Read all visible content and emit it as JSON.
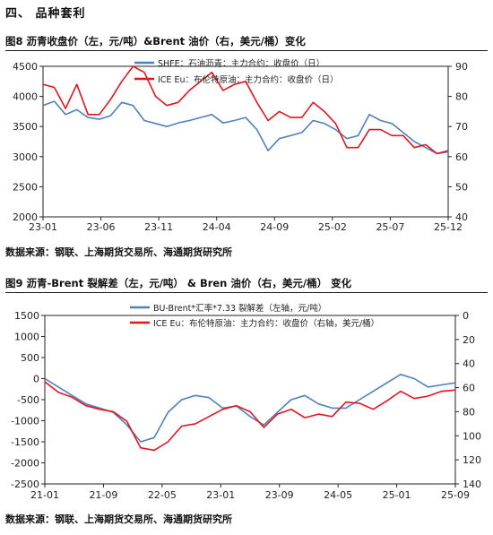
{
  "section": {
    "title": "四、  品种套利"
  },
  "figures": [
    {
      "header": "图8   沥青收盘价（左，元/吨）&Brent 油价（右，美元/桶）变化",
      "source": "数据来源：钢联、上海期货交易所、海通期货研究所"
    },
    {
      "header": "图9   沥青-Brent 裂解差（左，元/吨） & Bren 油价（右，美元/桶） 变化",
      "source": "数据来源：钢联、上海期货交易所、海通期货研究所"
    }
  ],
  "chart_data": [
    {
      "type": "line",
      "title": "",
      "x_tick_labels": [
        "23-01",
        "23-06",
        "23-11",
        "24-04",
        "24-09",
        "25-02",
        "25-07",
        "25-12"
      ],
      "x_range": [
        "2023-01",
        "2026-01"
      ],
      "y_left": {
        "range": [
          2000,
          4500
        ],
        "ticks": [
          2000,
          2500,
          3000,
          3500,
          4000,
          4500
        ]
      },
      "y_right": {
        "range": [
          40,
          90
        ],
        "ticks": [
          40,
          50,
          60,
          70,
          80,
          90
        ]
      },
      "grid": false,
      "legend_position": "top-center",
      "series": [
        {
          "name": "SHFE：石油沥青：主力合约：收盘价（日）",
          "axis": "left",
          "color": "#4f81bd",
          "x": [
            "2023-01",
            "2023-02",
            "2023-03",
            "2023-04",
            "2023-05",
            "2023-06",
            "2023-07",
            "2023-08",
            "2023-09",
            "2023-10",
            "2023-11",
            "2023-12",
            "2024-01",
            "2024-02",
            "2024-03",
            "2024-04",
            "2024-05",
            "2024-06",
            "2024-07",
            "2024-08",
            "2024-09",
            "2024-10",
            "2024-11",
            "2024-12",
            "2025-01",
            "2025-02",
            "2025-03",
            "2025-04",
            "2025-05",
            "2025-06",
            "2025-07",
            "2025-08",
            "2025-09",
            "2025-10",
            "2025-11",
            "2025-12",
            "2026-01"
          ],
          "values": [
            3850,
            3920,
            3700,
            3780,
            3650,
            3620,
            3680,
            3900,
            3850,
            3600,
            3550,
            3500,
            3560,
            3600,
            3650,
            3700,
            3560,
            3600,
            3650,
            3450,
            3100,
            3300,
            3350,
            3400,
            3600,
            3550,
            3450,
            3300,
            3350,
            3700,
            3600,
            3550,
            3400,
            3250,
            3150,
            3050,
            3080
          ]
        },
        {
          "name": "ICE Eu：布伦特原油：主力合约：收盘价（日）",
          "axis": "right",
          "color": "#e8141c",
          "x": [
            "2023-01",
            "2023-02",
            "2023-03",
            "2023-04",
            "2023-05",
            "2023-06",
            "2023-07",
            "2023-08",
            "2023-09",
            "2023-10",
            "2023-11",
            "2023-12",
            "2024-01",
            "2024-02",
            "2024-03",
            "2024-04",
            "2024-05",
            "2024-06",
            "2024-07",
            "2024-08",
            "2024-09",
            "2024-10",
            "2024-11",
            "2024-12",
            "2025-01",
            "2025-02",
            "2025-03",
            "2025-04",
            "2025-05",
            "2025-06",
            "2025-07",
            "2025-08",
            "2025-09",
            "2025-10",
            "2025-11",
            "2025-12",
            "2026-01"
          ],
          "values": [
            84,
            83,
            76,
            84,
            74,
            74,
            79,
            85,
            93,
            88,
            80,
            77,
            78,
            82,
            85,
            88,
            82,
            84,
            85,
            78,
            72,
            75,
            73,
            73,
            78,
            75,
            71,
            63,
            63,
            69,
            69,
            67,
            67,
            63,
            64,
            61,
            62
          ]
        }
      ]
    },
    {
      "type": "line",
      "title": "",
      "x_tick_labels": [
        "21-01",
        "21-09",
        "22-05",
        "23-01",
        "23-09",
        "24-05",
        "25-01",
        "25-09"
      ],
      "x_range": [
        "2021-01",
        "2026-01"
      ],
      "y_left": {
        "range": [
          -2500,
          1500
        ],
        "ticks": [
          -2500,
          -2000,
          -1500,
          -1000,
          -500,
          0,
          500,
          1000,
          1500
        ]
      },
      "y_right": {
        "range": [
          140,
          0
        ],
        "inverted": true,
        "ticks": [
          0,
          20,
          40,
          60,
          80,
          100,
          120,
          140
        ]
      },
      "grid": false,
      "legend_position": "top-center",
      "series": [
        {
          "name": "BU-Brent*汇率*7.33 裂解差（左轴，元/吨）",
          "axis": "left",
          "color": "#4f81bd",
          "x": [
            "2021-01",
            "2021-03",
            "2021-05",
            "2021-07",
            "2021-09",
            "2021-11",
            "2022-01",
            "2022-03",
            "2022-05",
            "2022-07",
            "2022-09",
            "2022-11",
            "2023-01",
            "2023-03",
            "2023-05",
            "2023-07",
            "2023-09",
            "2023-11",
            "2024-01",
            "2024-03",
            "2024-05",
            "2024-07",
            "2024-09",
            "2024-11",
            "2025-01",
            "2025-03",
            "2025-05",
            "2025-07",
            "2025-09",
            "2025-11",
            "2026-01"
          ],
          "values": [
            0,
            -200,
            -400,
            -600,
            -700,
            -800,
            -1100,
            -1500,
            -1400,
            -800,
            -500,
            -400,
            -450,
            -700,
            -650,
            -900,
            -1100,
            -800,
            -500,
            -400,
            -600,
            -700,
            -700,
            -500,
            -300,
            -100,
            100,
            0,
            -200,
            -150,
            -100
          ]
        },
        {
          "name": "ICE Eu：布伦特原油：主力合约：收盘价（右轴，美元/桶）",
          "axis": "right",
          "color": "#e8141c",
          "x": [
            "2021-01",
            "2021-03",
            "2021-05",
            "2021-07",
            "2021-09",
            "2021-11",
            "2022-01",
            "2022-03",
            "2022-05",
            "2022-07",
            "2022-09",
            "2022-11",
            "2023-01",
            "2023-03",
            "2023-05",
            "2023-07",
            "2023-09",
            "2023-11",
            "2024-01",
            "2024-03",
            "2024-05",
            "2024-07",
            "2024-09",
            "2024-11",
            "2025-01",
            "2025-03",
            "2025-05",
            "2025-07",
            "2025-09",
            "2025-11",
            "2026-01"
          ],
          "values": [
            55,
            64,
            68,
            75,
            78,
            80,
            88,
            110,
            112,
            105,
            92,
            90,
            84,
            78,
            75,
            80,
            93,
            82,
            78,
            85,
            82,
            84,
            72,
            73,
            78,
            71,
            63,
            69,
            67,
            63,
            62
          ]
        }
      ]
    }
  ]
}
